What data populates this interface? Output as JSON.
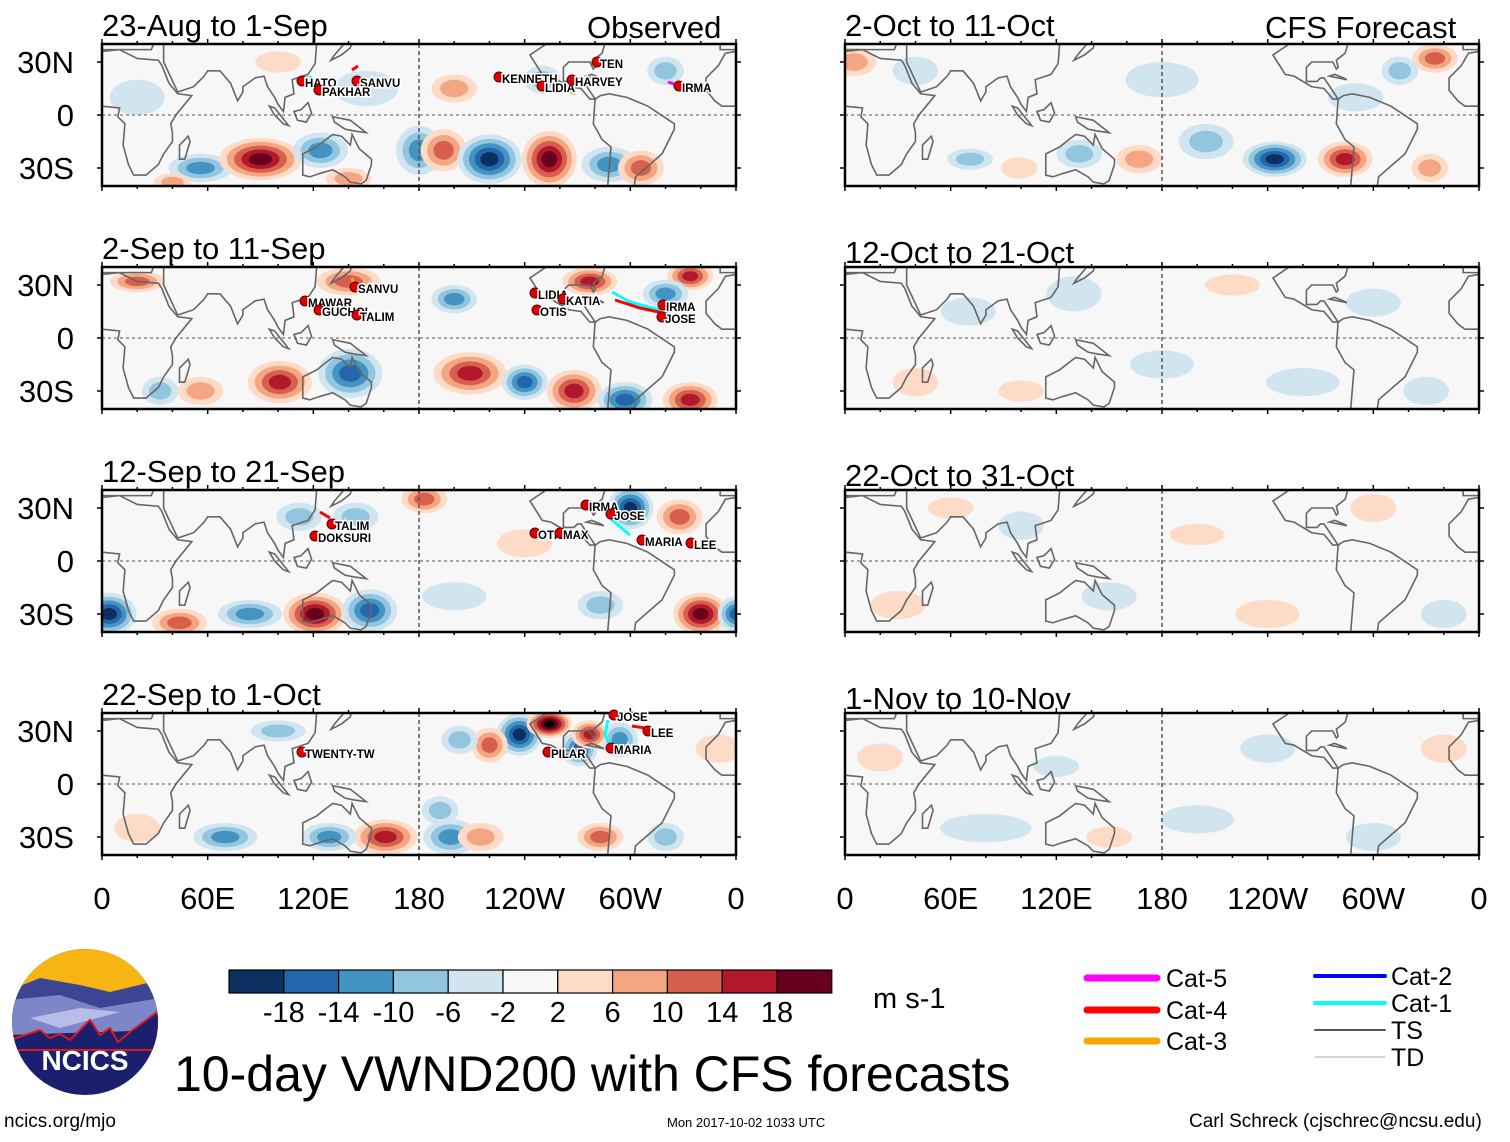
{
  "figure": {
    "title": "10-day VWND200 with CFS forecasts",
    "observed_label": "Observed",
    "forecast_label": "CFS Forecast",
    "footer_left": "ncics.org/mjo",
    "footer_center": "Mon 2017-10-02 1033 UTC",
    "footer_right": "Carl Schreck (cjschrec@ncsu.edu)",
    "logo_text": "NCICS"
  },
  "panels": [
    {
      "title": "23-Aug to 1-Sep",
      "type": "observed",
      "storms": [
        "HATO",
        "SANVU",
        "PAKHAR",
        "KENNETH",
        "LIDIA",
        "TEN",
        "HARVEY",
        "IRMA"
      ]
    },
    {
      "title": "2-Oct to 11-Oct",
      "type": "forecast",
      "storms": []
    },
    {
      "title": "2-Sep to 11-Sep",
      "type": "observed",
      "storms": [
        "SANVU",
        "MAWAR",
        "GUCHOL",
        "TALIM",
        "LIDIA",
        "KATIA",
        "OTIS",
        "IRMA",
        "JOSE"
      ]
    },
    {
      "title": "12-Oct to 21-Oct",
      "type": "forecast",
      "storms": []
    },
    {
      "title": "12-Sep to 21-Sep",
      "type": "observed",
      "storms": [
        "TALIM",
        "DOKSURI",
        "OTIS",
        "MAX",
        "IRMA",
        "JOSE",
        "MARIA",
        "LEE"
      ]
    },
    {
      "title": "22-Oct to 31-Oct",
      "type": "forecast",
      "storms": []
    },
    {
      "title": "22-Sep to 1-Oct",
      "type": "observed",
      "storms": [
        "TWENTY-TW",
        "PILAR",
        "JOSE",
        "LEE",
        "MARIA"
      ]
    },
    {
      "title": "1-Nov to 10-Nov",
      "type": "forecast",
      "storms": []
    }
  ],
  "axes": {
    "lat_labels": [
      "30N",
      "0",
      "30S"
    ],
    "lon_labels": [
      "0",
      "60E",
      "120E",
      "180",
      "120W",
      "60W",
      "0"
    ]
  },
  "colorbar": {
    "unit": "m s-1",
    "tick_labels": [
      "-18",
      "-14",
      "-10",
      "-6",
      "-2",
      "2",
      "6",
      "10",
      "14",
      "18"
    ],
    "colors": [
      "#0b2f5f",
      "#2466ab",
      "#4393c3",
      "#92c5de",
      "#d1e5f0",
      "#f7f7f7",
      "#fddbc7",
      "#f4a582",
      "#d6604d",
      "#b2182b",
      "#67001f"
    ]
  },
  "legend": [
    {
      "label": "Cat-5",
      "color": "#ff00ff"
    },
    {
      "label": "Cat-4",
      "color": "#ff0000"
    },
    {
      "label": "Cat-3",
      "color": "#ffa500"
    },
    {
      "label": "Cat-2",
      "color": "#0000ff"
    },
    {
      "label": "Cat-1",
      "color": "#00ffff"
    },
    {
      "label": "TS",
      "color": "#555555"
    },
    {
      "label": "TD",
      "color": "#aaaaaa"
    }
  ]
}
